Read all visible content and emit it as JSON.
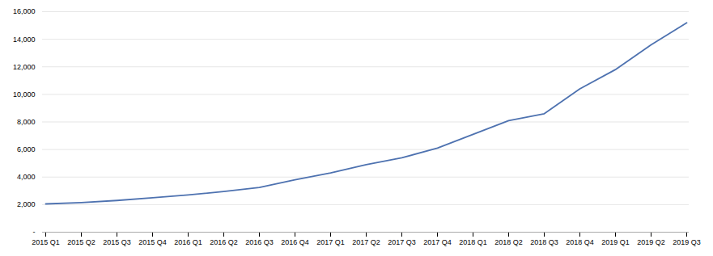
{
  "chart_data": {
    "type": "line",
    "categories": [
      "2015 Q1",
      "2015 Q2",
      "2015 Q3",
      "2015 Q4",
      "2016 Q1",
      "2016 Q2",
      "2016 Q3",
      "2016 Q4",
      "2017 Q1",
      "2017 Q2",
      "2017 Q3",
      "2017 Q4",
      "2018 Q1",
      "2018 Q2",
      "2018 Q3",
      "2018 Q4",
      "2019 Q1",
      "2019 Q2",
      "2019 Q3"
    ],
    "values": [
      2050,
      2150,
      2300,
      2500,
      2700,
      2950,
      3250,
      3800,
      4300,
      4900,
      5400,
      6100,
      7100,
      8100,
      8600,
      10400,
      11800,
      13600,
      15200
    ],
    "color": "#4E72B0",
    "ylim": [
      0,
      16000
    ],
    "yticks": [
      {
        "value": 0,
        "label": "-"
      },
      {
        "value": 2000,
        "label": "2,000"
      },
      {
        "value": 4000,
        "label": "4,000"
      },
      {
        "value": 6000,
        "label": "6,000"
      },
      {
        "value": 8000,
        "label": "8,000"
      },
      {
        "value": 10000,
        "label": "10,000"
      },
      {
        "value": 12000,
        "label": "12,000"
      },
      {
        "value": 14000,
        "label": "14,000"
      },
      {
        "value": 16000,
        "label": "16,000"
      }
    ],
    "grid": true
  }
}
